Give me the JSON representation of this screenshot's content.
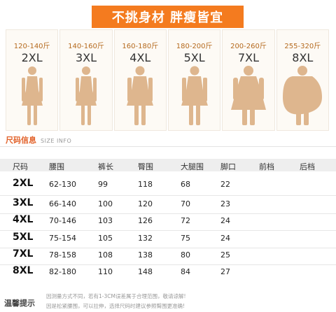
{
  "banner": {
    "text": "不挑身材 胖瘦皆宜"
  },
  "sizes": [
    {
      "weight": "120-140斤",
      "size": "2XL",
      "figure": "slim"
    },
    {
      "weight": "140-160斤",
      "size": "3XL",
      "figure": "slim"
    },
    {
      "weight": "160-180斤",
      "size": "4XL",
      "figure": "medium"
    },
    {
      "weight": "180-200斤",
      "size": "5XL",
      "figure": "medium"
    },
    {
      "weight": "200-260斤",
      "size": "7XL",
      "figure": "large"
    },
    {
      "weight": "255-320斤",
      "size": "8XL",
      "figure": "xlarge"
    }
  ],
  "section": {
    "title": "尺码信息",
    "subtitle": "SIZE INFO"
  },
  "table": {
    "headers": [
      "尺码",
      "腰围",
      "裤长",
      "臀围",
      "大腿围",
      "脚口",
      "前档",
      "后档"
    ],
    "rows": [
      [
        "2XL",
        "62-130",
        "99",
        "118",
        "68",
        "22",
        "",
        ""
      ],
      [
        "3XL",
        "66-140",
        "100",
        "120",
        "70",
        "23",
        "",
        ""
      ],
      [
        "4XL",
        "70-146",
        "103",
        "126",
        "72",
        "24",
        "",
        ""
      ],
      [
        "5XL",
        "75-154",
        "105",
        "132",
        "75",
        "24",
        "",
        ""
      ],
      [
        "7XL",
        "78-158",
        "108",
        "138",
        "80",
        "25",
        "",
        ""
      ],
      [
        "8XL",
        "82-180",
        "110",
        "148",
        "84",
        "27",
        "",
        ""
      ]
    ]
  },
  "tips": {
    "title": "温馨提示",
    "lines": [
      "因测量方式不同，若有1-3CM误差属于合理范围，敬请谅解!",
      "因是松紧腰围，可以拉伸，选择尺码时建议参照臀围更准确!"
    ]
  },
  "colors": {
    "accent": "#f47b1f",
    "figure": "#deb68e",
    "title_red": "#e2622a"
  }
}
